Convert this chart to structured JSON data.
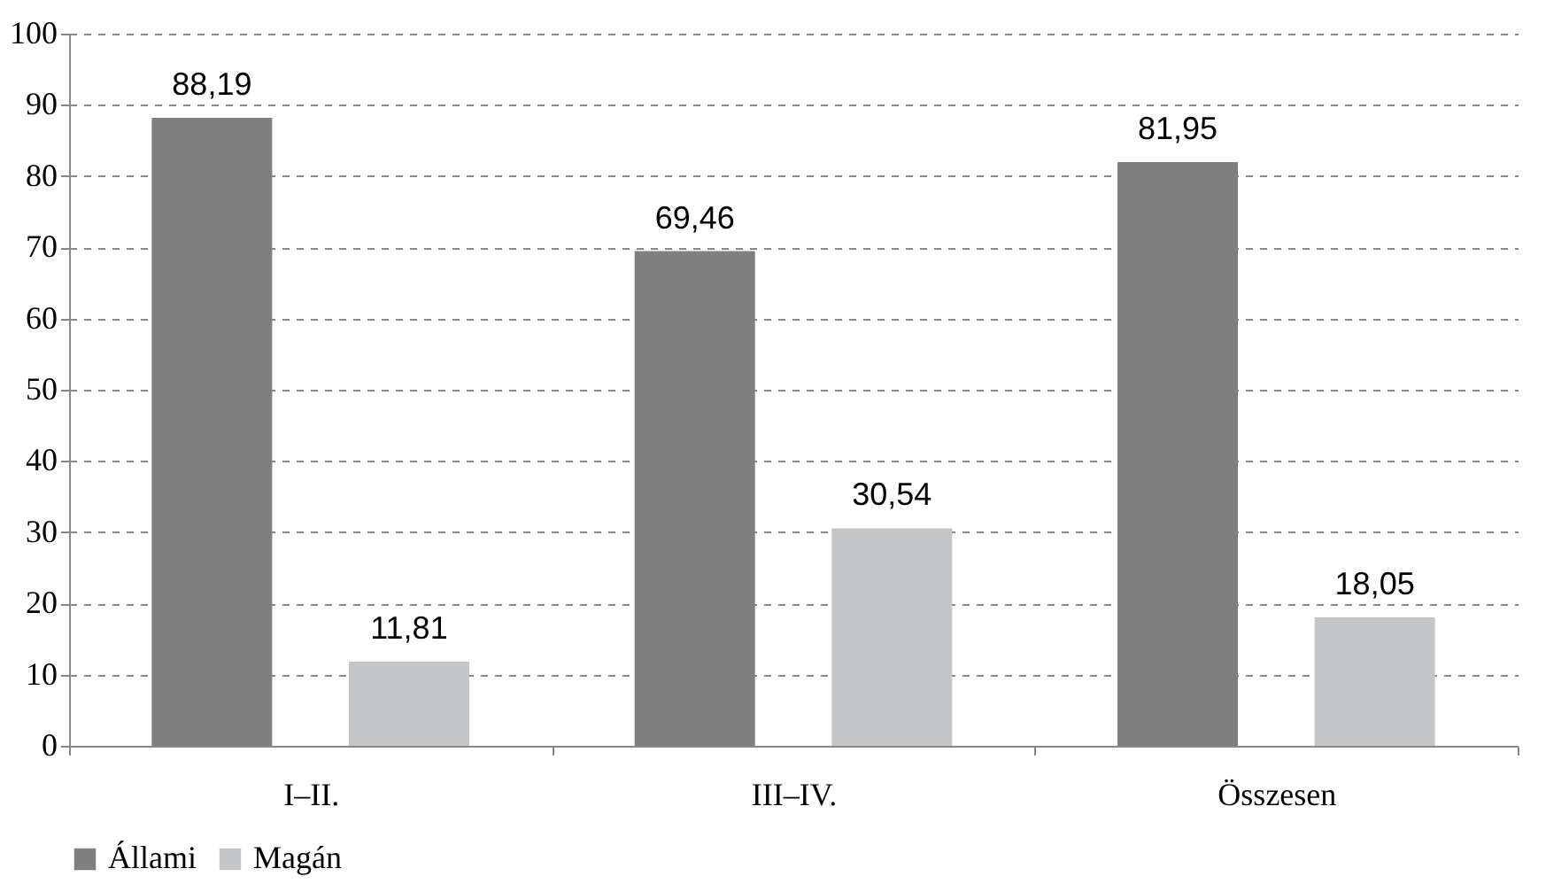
{
  "chart_data": {
    "type": "bar",
    "categories": [
      "I–II.",
      "III–IV.",
      "Összesen"
    ],
    "series": [
      {
        "name": "Állami",
        "color": "#7f7f7f",
        "values": [
          88.19,
          69.46,
          81.95
        ],
        "value_labels": [
          "88,19",
          "69,46",
          "81,95"
        ]
      },
      {
        "name": "Magán",
        "color": "#c3c5c8",
        "values": [
          11.81,
          30.54,
          18.05
        ],
        "value_labels": [
          "11,81",
          "30,54",
          "18,05"
        ]
      }
    ],
    "ylim": [
      0,
      100
    ],
    "yticks": [
      0,
      10,
      20,
      30,
      40,
      50,
      60,
      70,
      80,
      90,
      100
    ],
    "grid": "y",
    "legend": "bottom"
  }
}
